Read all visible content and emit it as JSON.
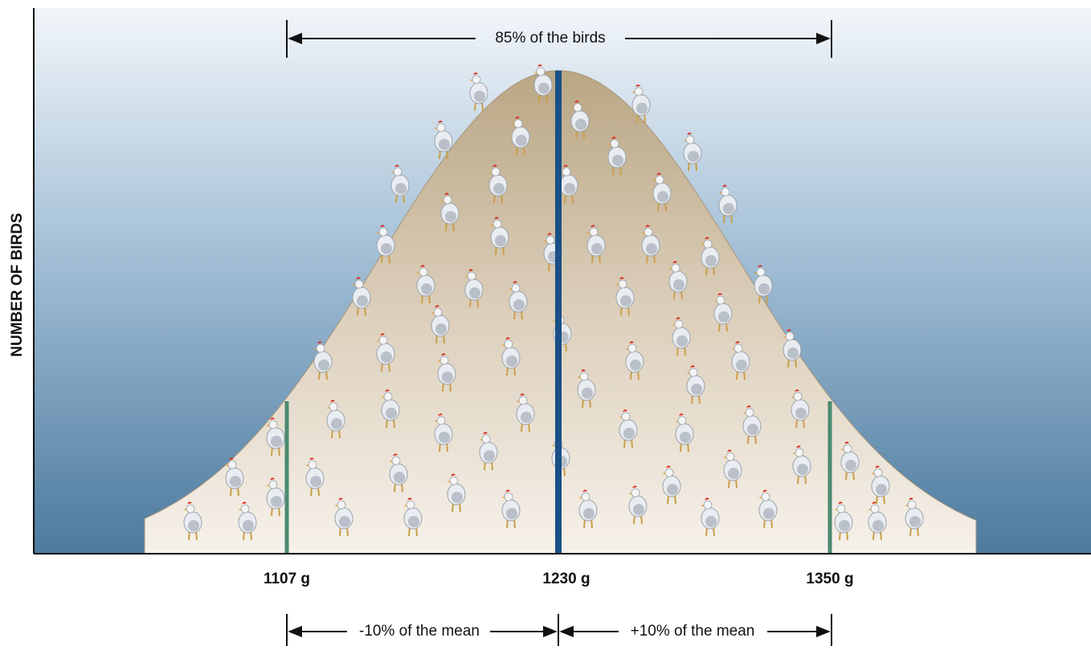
{
  "y_axis_label": "NUMBER OF BIRDS",
  "top_span_label": "85% of the birds",
  "x_labels": [
    "1107 g",
    "1230 g",
    "1350 g"
  ],
  "bottom_span_labels": [
    "-10% of the mean",
    "+10% of the mean"
  ]
}
